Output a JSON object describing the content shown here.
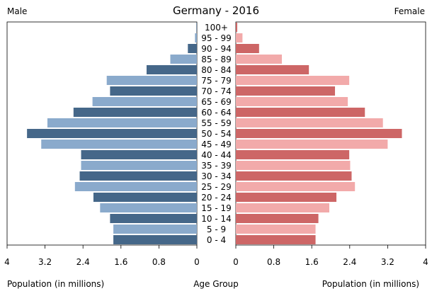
{
  "chart_data": {
    "type": "bar",
    "subtype": "population-pyramid",
    "title": "Germany - 2016",
    "left_label": "Male",
    "right_label": "Female",
    "xlabel_left": "Population (in millions)",
    "xlabel_center": "Age Group",
    "xlabel_right": "Population (in millions)",
    "xlim": [
      0,
      4
    ],
    "ticks": [
      "4",
      "3.2",
      "2.4",
      "1.6",
      "0.8",
      "0",
      "0",
      "0.8",
      "1.6",
      "2.4",
      "3.2",
      "4"
    ],
    "categories": [
      "0 - 4",
      "5 - 9",
      "10 - 14",
      "15 - 19",
      "20 - 24",
      "25 - 29",
      "30 - 34",
      "35 - 39",
      "40 - 44",
      "45 - 49",
      "50 - 54",
      "55 - 59",
      "60 - 64",
      "65 - 69",
      "70 - 74",
      "75 - 79",
      "80 - 84",
      "85 - 89",
      "90 - 94",
      "95 - 99",
      "100+"
    ],
    "series": [
      {
        "side": "left",
        "values": [
          1.76,
          1.76,
          1.83,
          2.04,
          2.18,
          2.57,
          2.47,
          2.44,
          2.44,
          3.28,
          3.58,
          3.15,
          2.6,
          2.2,
          1.83,
          1.9,
          1.06,
          0.56,
          0.19,
          0.04,
          0.01
        ]
      },
      {
        "side": "right",
        "values": [
          1.68,
          1.68,
          1.74,
          1.97,
          2.12,
          2.51,
          2.44,
          2.41,
          2.39,
          3.2,
          3.5,
          3.1,
          2.72,
          2.36,
          2.09,
          2.39,
          1.54,
          0.97,
          0.49,
          0.14,
          0.03
        ]
      }
    ],
    "colors": {
      "male_dark": "#456789",
      "male_light": "#8aaacc",
      "female_dark": "#cd6666",
      "female_light": "#f2aaaa"
    },
    "grid": false
  }
}
